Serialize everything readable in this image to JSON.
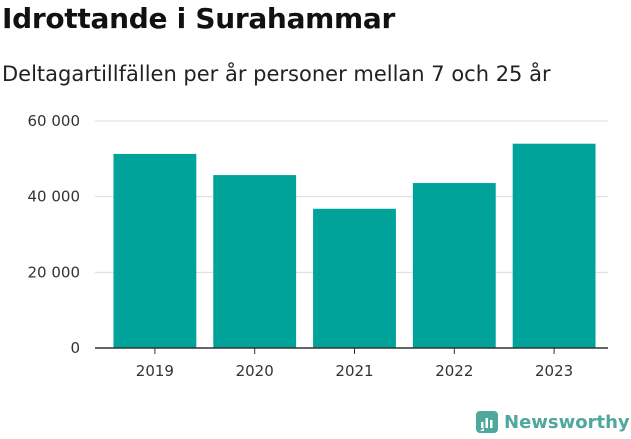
{
  "header": {
    "title": "Idrottande i Surahammar",
    "subtitle": "Deltagartillfällen per år personer mellan 7 och 25 år"
  },
  "brand": {
    "name": "Newsworthy",
    "icon": "newsworthy-logo-icon",
    "color": "#4fa89c"
  },
  "chart_data": {
    "type": "bar",
    "title": "Idrottande i Surahammar",
    "subtitle": "Deltagartillfällen per år personer mellan 7 och 25 år",
    "xlabel": "",
    "ylabel": "",
    "categories": [
      "2019",
      "2020",
      "2021",
      "2022",
      "2023"
    ],
    "values": [
      51300,
      45700,
      36800,
      43600,
      54000
    ],
    "ylim": [
      0,
      60000
    ],
    "yticks": [
      0,
      20000,
      40000,
      60000
    ],
    "ytick_labels": [
      "0",
      "20 000",
      "40 000",
      "60 000"
    ],
    "grid": true,
    "bar_color": "#00a399"
  }
}
